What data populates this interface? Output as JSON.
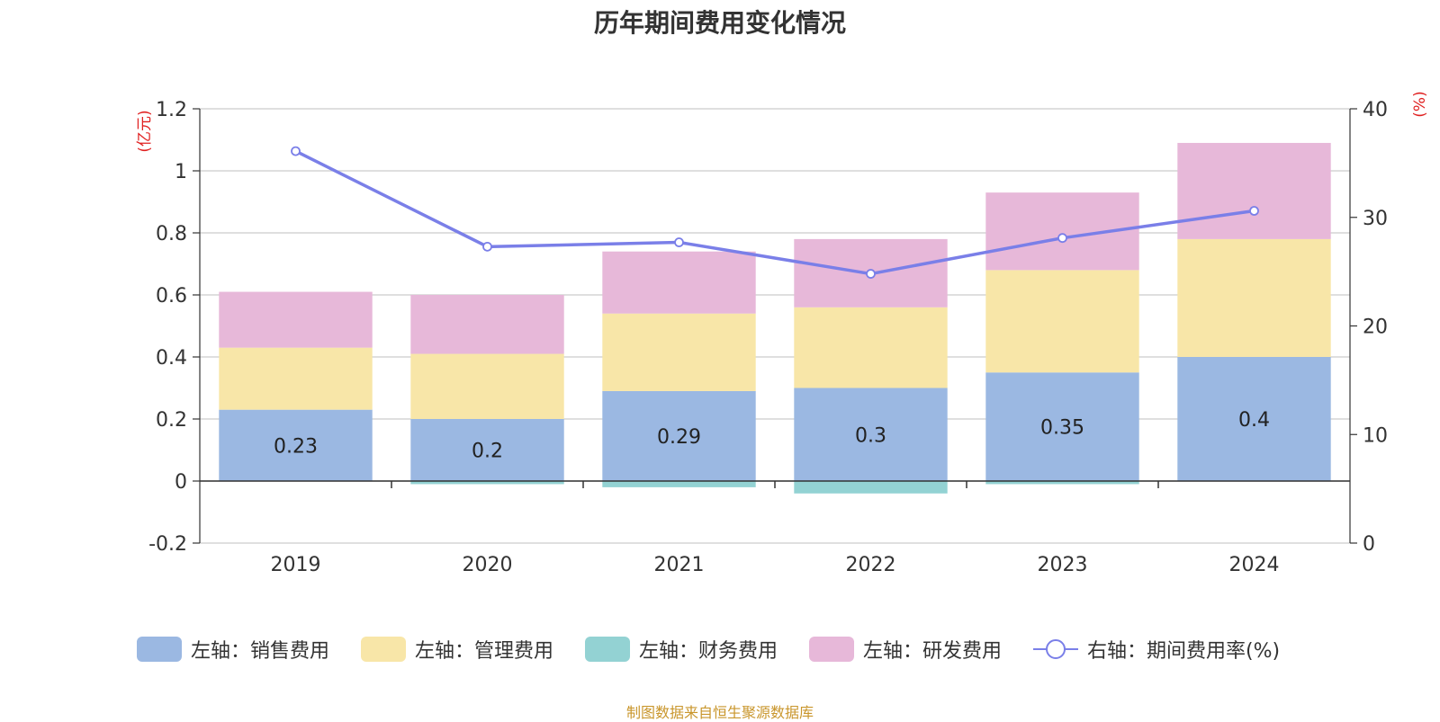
{
  "chart_data": {
    "type": "bar",
    "title": "历年期间费用变化情况",
    "categories": [
      "2019",
      "2020",
      "2021",
      "2022",
      "2023",
      "2024"
    ],
    "stacked": true,
    "left_axis": {
      "label": "(亿元)",
      "ylim": [
        -0.2,
        1.2
      ],
      "ticks": [
        "-0.2",
        "0",
        "0.2",
        "0.4",
        "0.6",
        "0.8",
        "1",
        "1.2"
      ]
    },
    "right_axis": {
      "label": "(%)",
      "ylim": [
        0,
        40
      ],
      "ticks": [
        "0",
        "10",
        "20",
        "30",
        "40"
      ]
    },
    "series": [
      {
        "name": "左轴：销售费用",
        "axis": "left",
        "color": "#9bb8e2",
        "values": [
          0.23,
          0.2,
          0.29,
          0.3,
          0.35,
          0.4
        ],
        "data_labels": [
          "0.23",
          "0.2",
          "0.29",
          "0.3",
          "0.35",
          "0.4"
        ]
      },
      {
        "name": "左轴：管理费用",
        "axis": "left",
        "color": "#f8e6a8",
        "values": [
          0.2,
          0.21,
          0.25,
          0.26,
          0.33,
          0.38
        ]
      },
      {
        "name": "左轴：财务费用",
        "axis": "left",
        "color": "#93d2d3",
        "values": [
          0.0,
          -0.01,
          -0.02,
          -0.04,
          -0.01,
          0.0
        ]
      },
      {
        "name": "左轴：研发费用",
        "axis": "left",
        "color": "#e7b8d9",
        "values": [
          0.18,
          0.19,
          0.2,
          0.22,
          0.25,
          0.31
        ]
      },
      {
        "name": "右轴：期间费用率(%)",
        "axis": "right",
        "type": "line",
        "color": "#7a7fe8",
        "values": [
          36.1,
          27.3,
          27.7,
          24.8,
          28.1,
          30.6
        ]
      }
    ],
    "grid": true,
    "legend_position": "bottom"
  },
  "source_note": "制图数据来自恒生聚源数据库"
}
